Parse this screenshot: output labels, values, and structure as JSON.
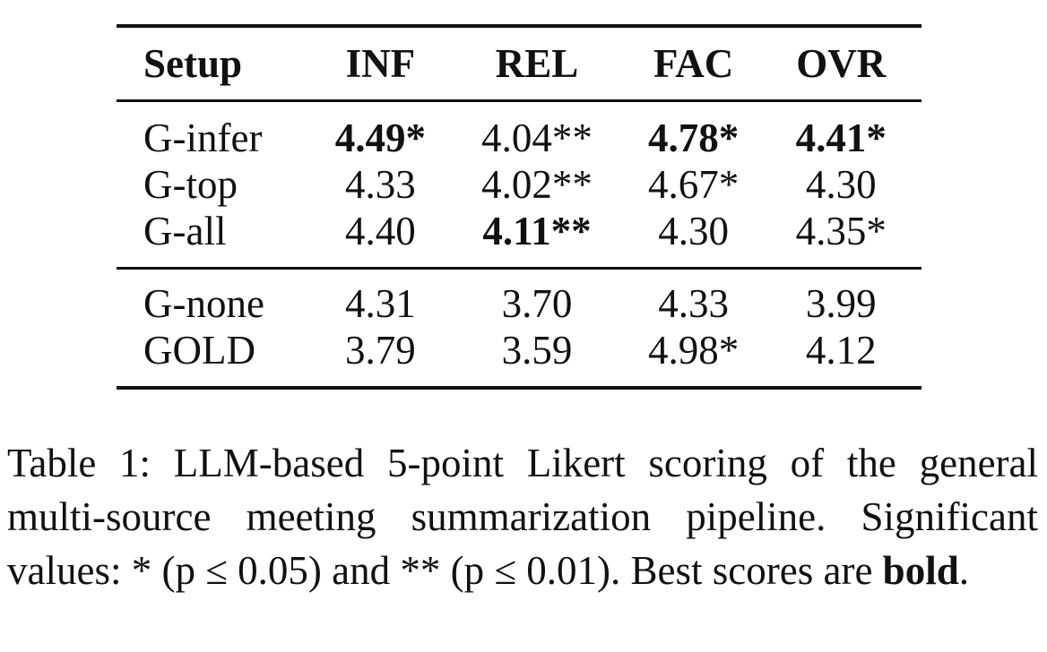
{
  "table": {
    "headers": [
      "Setup",
      "INF",
      "REL",
      "FAC",
      "OVR"
    ],
    "group_a": [
      {
        "setup": "G-infer",
        "inf": "4.49*",
        "rel": "4.04**",
        "fac": "4.78*",
        "ovr": "4.41*"
      },
      {
        "setup": "G-top",
        "inf": "4.33",
        "rel": "4.02**",
        "fac": "4.67*",
        "ovr": "4.30"
      },
      {
        "setup": "G-all",
        "inf": "4.40",
        "rel": "4.11**",
        "fac": "4.30",
        "ovr": "4.35*"
      }
    ],
    "group_b": [
      {
        "setup": "G-none",
        "inf": "4.31",
        "rel": "3.70",
        "fac": "4.33",
        "ovr": "3.99"
      },
      {
        "setup": "GOLD",
        "inf": "3.79",
        "rel": "3.59",
        "fac": "4.98*",
        "ovr": "4.12"
      }
    ]
  },
  "caption": {
    "label": "Table 1:",
    "text": "LLM-based 5-point Likert scoring of the general multi-source meeting summarization pipeline. Significant values: * (p ≤ 0.05) and ** (p ≤ 0.01). Best scores are",
    "bold_word": "bold",
    "end": "."
  }
}
